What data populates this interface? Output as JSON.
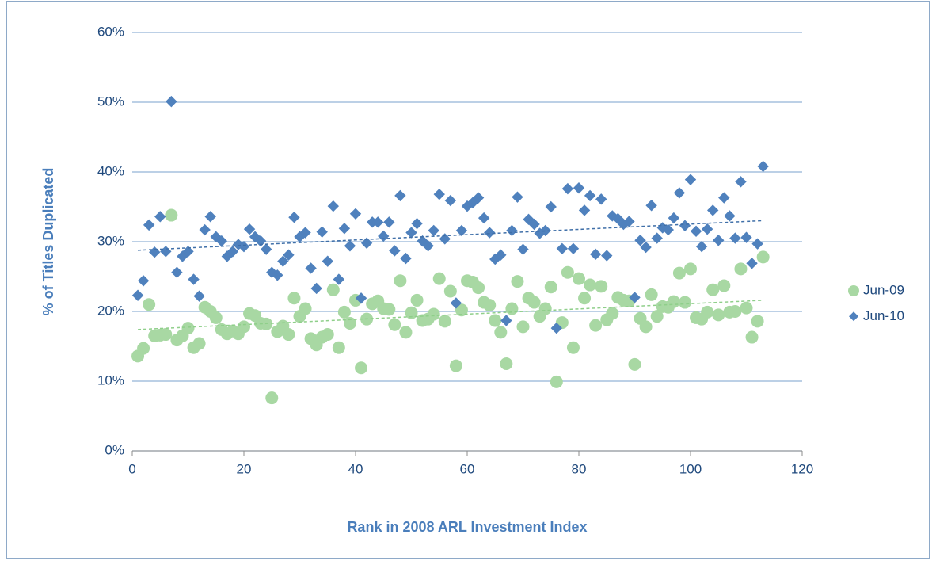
{
  "chart_data": {
    "type": "scatter",
    "xlabel": "Rank in 2008 ARL Investment Index",
    "ylabel": "% of Titles Duplicated",
    "xlim": [
      0,
      120
    ],
    "xticks": [
      0,
      20,
      40,
      60,
      80,
      100,
      120
    ],
    "ylim": [
      0,
      60
    ],
    "yticks": [
      {
        "value": 0,
        "label": "0%"
      },
      {
        "value": 10,
        "label": "10%"
      },
      {
        "value": 20,
        "label": "20%"
      },
      {
        "value": 30,
        "label": "30%"
      },
      {
        "value": 40,
        "label": "40%"
      },
      {
        "value": 50,
        "label": "50%"
      },
      {
        "value": 60,
        "label": "60%"
      }
    ],
    "grid": true,
    "legend": "right",
    "trendline": true,
    "x": [
      1,
      2,
      3,
      4,
      5,
      6,
      7,
      8,
      9,
      10,
      11,
      12,
      13,
      14,
      15,
      16,
      17,
      18,
      19,
      20,
      21,
      22,
      23,
      24,
      25,
      26,
      27,
      28,
      29,
      30,
      31,
      32,
      33,
      34,
      35,
      36,
      37,
      38,
      39,
      40,
      41,
      42,
      43,
      44,
      45,
      46,
      47,
      48,
      49,
      50,
      51,
      52,
      53,
      54,
      55,
      56,
      57,
      58,
      59,
      60,
      61,
      62,
      63,
      64,
      65,
      66,
      67,
      68,
      69,
      70,
      71,
      72,
      73,
      74,
      75,
      76,
      77,
      78,
      79,
      80,
      81,
      82,
      83,
      84,
      85,
      86,
      87,
      88,
      89,
      90,
      91,
      92,
      93,
      94,
      95,
      96,
      97,
      98,
      99,
      100,
      101,
      102,
      103,
      104,
      105,
      106,
      107,
      108,
      109,
      110,
      111,
      112,
      113
    ],
    "series": [
      {
        "name": "Jun-09",
        "color": "#a8d8a3",
        "trend_color": "#8fcf8a",
        "marker": "circle",
        "values": [
          13.6,
          14.7,
          21.0,
          16.5,
          16.6,
          16.7,
          33.8,
          15.9,
          16.5,
          17.6,
          14.8,
          15.4,
          20.6,
          20.0,
          19.1,
          17.4,
          16.8,
          17.2,
          16.8,
          17.8,
          19.7,
          19.4,
          18.3,
          18.2,
          7.6,
          17.1,
          17.9,
          16.7,
          21.9,
          19.3,
          20.4,
          16.1,
          15.2,
          16.3,
          16.7,
          23.1,
          14.8,
          19.9,
          18.3,
          21.6,
          11.9,
          18.9,
          21.1,
          21.5,
          20.4,
          20.3,
          18.1,
          24.4,
          17.0,
          19.8,
          21.6,
          18.7,
          18.9,
          19.6,
          24.7,
          18.6,
          22.9,
          12.2,
          20.2,
          24.4,
          24.2,
          23.4,
          21.3,
          20.9,
          18.7,
          17.0,
          12.5,
          20.4,
          24.3,
          17.8,
          21.9,
          21.3,
          19.3,
          20.4,
          23.5,
          9.9,
          18.4,
          25.6,
          14.8,
          24.7,
          21.9,
          23.8,
          18.0,
          23.6,
          18.8,
          19.7,
          22.0,
          21.6,
          21.5,
          12.4,
          19.0,
          17.8,
          22.4,
          19.3,
          20.7,
          20.6,
          21.4,
          25.5,
          21.3,
          26.1,
          19.1,
          18.9,
          19.9,
          23.1,
          19.5,
          23.7,
          19.9,
          20.0,
          26.1,
          20.5,
          16.3,
          18.6,
          27.8
        ]
      },
      {
        "name": "Jun-10",
        "color": "#4f81bd",
        "trend_color": "#3f6fa8",
        "marker": "diamond",
        "values": [
          22.3,
          24.4,
          32.4,
          28.5,
          33.6,
          28.6,
          50.1,
          25.6,
          27.9,
          28.6,
          24.6,
          22.2,
          31.7,
          33.6,
          30.7,
          30.1,
          27.9,
          28.6,
          29.6,
          29.3,
          31.8,
          30.7,
          30.1,
          28.9,
          25.6,
          25.2,
          27.2,
          28.1,
          33.5,
          30.7,
          31.3,
          26.2,
          23.3,
          31.4,
          27.2,
          35.1,
          24.6,
          31.9,
          29.4,
          34.0,
          21.9,
          29.8,
          32.8,
          32.8,
          30.8,
          32.8,
          28.7,
          36.6,
          27.6,
          31.3,
          32.6,
          30.1,
          29.4,
          31.6,
          36.8,
          30.4,
          35.9,
          21.2,
          31.6,
          35.1,
          35.6,
          36.3,
          33.4,
          31.3,
          27.5,
          28.1,
          18.7,
          31.6,
          36.4,
          28.9,
          33.2,
          32.5,
          31.2,
          31.6,
          35.0,
          17.6,
          29.0,
          37.6,
          29.0,
          37.7,
          34.5,
          36.6,
          28.2,
          36.1,
          28.0,
          33.7,
          33.3,
          32.5,
          32.9,
          22.0,
          30.2,
          29.2,
          35.2,
          30.5,
          32.0,
          31.7,
          33.4,
          37.0,
          32.3,
          38.9,
          31.5,
          29.3,
          31.8,
          34.5,
          30.2,
          36.3,
          33.7,
          30.5,
          38.6,
          30.6,
          26.9,
          29.7,
          40.8
        ]
      }
    ]
  }
}
